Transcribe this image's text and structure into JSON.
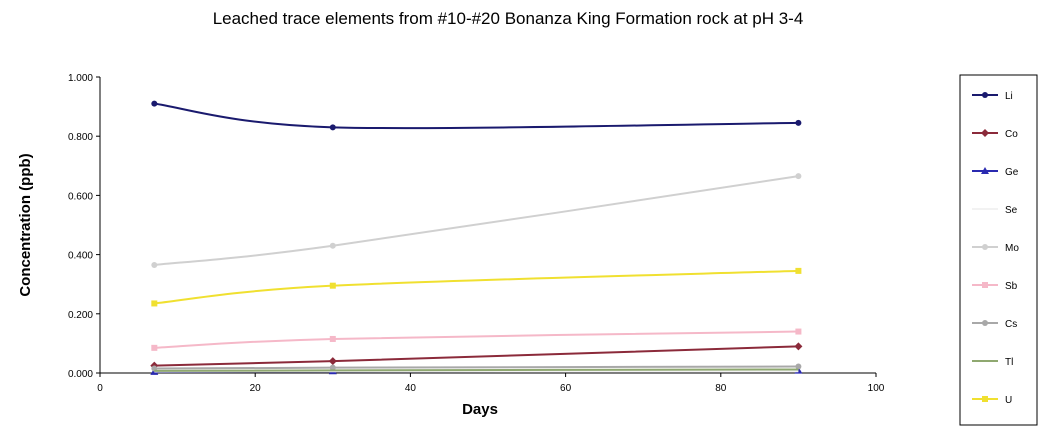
{
  "chart_data": {
    "type": "line",
    "title": "Leached trace elements from #10-#20 Bonanza King Formation rock at pH 3-4",
    "xlabel": "Days",
    "ylabel": "Concentration (ppb)",
    "xlim": [
      0,
      100
    ],
    "ylim": [
      0,
      1.0
    ],
    "x_ticks": [
      "0",
      "20",
      "40",
      "60",
      "80",
      "100"
    ],
    "y_ticks": [
      "0.000",
      "0.200",
      "0.400",
      "0.600",
      "0.800",
      "1.000"
    ],
    "grid": false,
    "legend_position": "right",
    "x": [
      7,
      30,
      90
    ],
    "series": [
      {
        "name": "Li",
        "color": "#1a1a6e",
        "marker": "circle",
        "values": [
          0.91,
          0.83,
          0.845
        ]
      },
      {
        "name": "Co",
        "color": "#8b2a3a",
        "marker": "diamond",
        "values": [
          0.025,
          0.04,
          0.09
        ]
      },
      {
        "name": "Ge",
        "color": "#2a2ab0",
        "marker": "triangle",
        "values": [
          0.004,
          0.006,
          0.008
        ]
      },
      {
        "name": "Se",
        "color": "#f2f2f2",
        "marker": "none",
        "values": [
          0.005,
          0.006,
          0.006
        ]
      },
      {
        "name": "Mo",
        "color": "#d0d0d0",
        "marker": "circle",
        "values": [
          0.365,
          0.43,
          0.665
        ]
      },
      {
        "name": "Sb",
        "color": "#f5b8c8",
        "marker": "square",
        "values": [
          0.085,
          0.115,
          0.14
        ]
      },
      {
        "name": "Cs",
        "color": "#a8a8a8",
        "marker": "circle",
        "values": [
          0.015,
          0.018,
          0.022
        ]
      },
      {
        "name": "Tl",
        "color": "#8fa870",
        "marker": "none",
        "values": [
          0.007,
          0.009,
          0.012
        ]
      },
      {
        "name": "U",
        "color": "#f0e030",
        "marker": "square",
        "values": [
          0.235,
          0.295,
          0.345
        ]
      }
    ]
  }
}
